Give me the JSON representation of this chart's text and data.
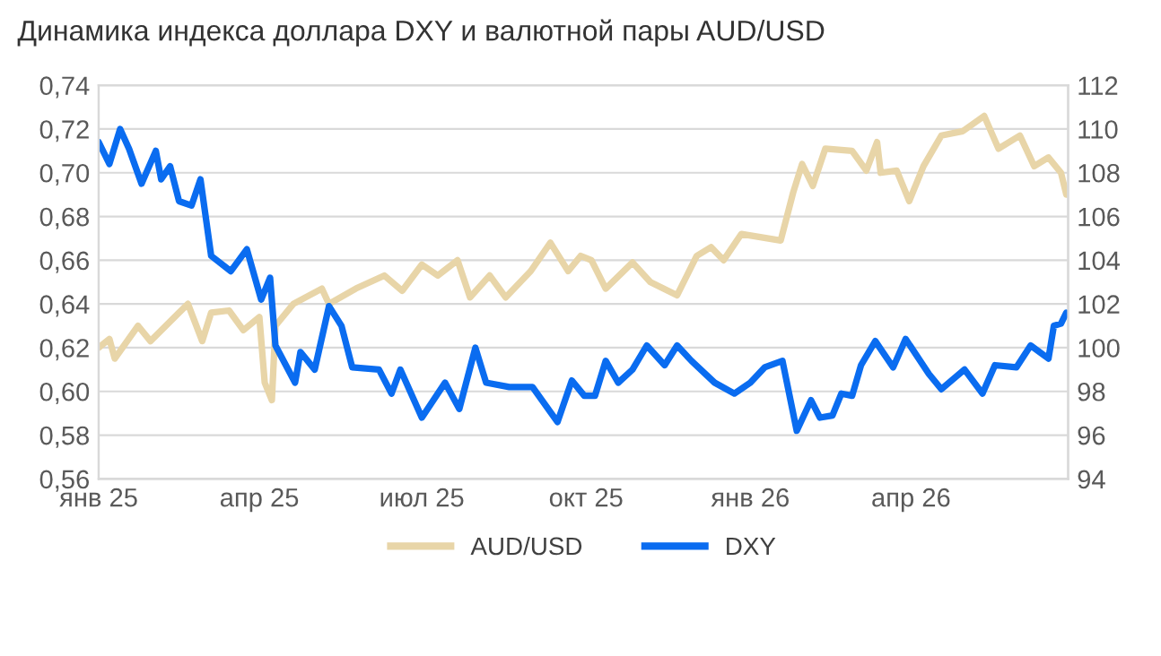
{
  "chart_data": {
    "type": "line",
    "title": "Динамика индекса доллара DXY и валютной пары AUD/USD",
    "xlim": [
      "2025-01-01",
      "2026-06-28"
    ],
    "xticks": [
      {
        "value": "2025-01-01",
        "label": "янв 25"
      },
      {
        "value": "2025-04-01",
        "label": "апр 25"
      },
      {
        "value": "2025-07-01",
        "label": "июл 25"
      },
      {
        "value": "2025-10-01",
        "label": "окт 25"
      },
      {
        "value": "2026-01-01",
        "label": "янв 26"
      },
      {
        "value": "2026-04-01",
        "label": "апр 26"
      }
    ],
    "ylim": [
      0.56,
      0.74
    ],
    "yticks": [
      {
        "value": 0.56,
        "label": "0,56"
      },
      {
        "value": 0.58,
        "label": "0,58"
      },
      {
        "value": 0.6,
        "label": "0,60"
      },
      {
        "value": 0.62,
        "label": "0,62"
      },
      {
        "value": 0.64,
        "label": "0,64"
      },
      {
        "value": 0.66,
        "label": "0,66"
      },
      {
        "value": 0.68,
        "label": "0,68"
      },
      {
        "value": 0.7,
        "label": "0,70"
      },
      {
        "value": 0.72,
        "label": "0,72"
      },
      {
        "value": 0.74,
        "label": "0,74"
      }
    ],
    "y2lim": [
      94,
      112
    ],
    "y2ticks": [
      94,
      96,
      98,
      100,
      102,
      104,
      106,
      108,
      110,
      112
    ],
    "grid": "y",
    "legend": "bottom",
    "marker": "none",
    "line_style": "solid",
    "series": [
      {
        "name": "AUD/USD",
        "color": "#e8d5a8",
        "x": [
          "2025-01-01",
          "2025-01-07",
          "2025-01-10",
          "2025-01-23",
          "2025-01-30",
          "2025-02-15",
          "2025-02-20",
          "2025-02-28",
          "2025-03-05",
          "2025-03-15",
          "2025-03-23",
          "2025-04-01",
          "2025-04-04",
          "2025-04-08",
          "2025-04-10",
          "2025-04-20",
          "2025-05-06",
          "2025-05-10",
          "2025-05-25",
          "2025-06-10",
          "2025-06-20",
          "2025-07-01",
          "2025-07-10",
          "2025-07-21",
          "2025-07-28",
          "2025-08-08",
          "2025-08-17",
          "2025-08-31",
          "2025-09-11",
          "2025-09-21",
          "2025-09-28",
          "2025-10-04",
          "2025-10-12",
          "2025-10-27",
          "2025-11-06",
          "2025-11-21",
          "2025-12-02",
          "2025-12-10",
          "2025-12-17",
          "2025-12-27",
          "2026-01-18",
          "2026-01-25",
          "2026-01-30",
          "2026-02-05",
          "2026-02-12",
          "2026-02-27",
          "2026-03-07",
          "2026-03-13",
          "2026-03-15",
          "2026-03-24",
          "2026-03-31",
          "2026-04-08",
          "2026-04-18",
          "2026-04-30",
          "2026-05-12",
          "2026-05-20",
          "2026-06-01",
          "2026-06-09",
          "2026-06-17",
          "2026-06-24",
          "2026-06-27"
        ],
        "values": [
          0.62,
          0.624,
          0.615,
          0.63,
          0.623,
          0.636,
          0.64,
          0.623,
          0.636,
          0.637,
          0.628,
          0.634,
          0.604,
          0.596,
          0.63,
          0.64,
          0.647,
          0.64,
          0.647,
          0.653,
          0.646,
          0.658,
          0.653,
          0.66,
          0.643,
          0.653,
          0.643,
          0.655,
          0.668,
          0.655,
          0.662,
          0.66,
          0.647,
          0.659,
          0.65,
          0.644,
          0.662,
          0.666,
          0.66,
          0.672,
          0.669,
          0.691,
          0.704,
          0.694,
          0.711,
          0.71,
          0.701,
          0.714,
          0.7,
          0.701,
          0.687,
          0.703,
          0.717,
          0.719,
          0.726,
          0.711,
          0.717,
          0.703,
          0.707,
          0.7,
          0.69
        ]
      },
      {
        "name": "DXY",
        "color": "#0a6cf0",
        "axis": "y2",
        "x": [
          "2025-01-01",
          "2025-01-07",
          "2025-01-13",
          "2025-01-18",
          "2025-01-25",
          "2025-02-02",
          "2025-02-05",
          "2025-02-10",
          "2025-02-15",
          "2025-02-22",
          "2025-02-27",
          "2025-03-05",
          "2025-03-16",
          "2025-03-25",
          "2025-04-02",
          "2025-04-07",
          "2025-04-10",
          "2025-04-21",
          "2025-04-24",
          "2025-05-02",
          "2025-05-10",
          "2025-05-17",
          "2025-05-23",
          "2025-06-07",
          "2025-06-14",
          "2025-06-19",
          "2025-07-01",
          "2025-07-14",
          "2025-07-22",
          "2025-07-31",
          "2025-08-06",
          "2025-08-19",
          "2025-09-01",
          "2025-09-15",
          "2025-09-23",
          "2025-09-30",
          "2025-10-06",
          "2025-10-12",
          "2025-10-19",
          "2025-10-27",
          "2025-11-04",
          "2025-11-14",
          "2025-11-21",
          "2025-11-29",
          "2025-12-12",
          "2025-12-23",
          "2026-01-01",
          "2026-01-09",
          "2026-01-19",
          "2026-01-27",
          "2026-02-04",
          "2026-02-09",
          "2026-02-16",
          "2026-02-21",
          "2026-02-27",
          "2026-03-04",
          "2026-03-12",
          "2026-03-22",
          "2026-03-29",
          "2026-04-11",
          "2026-04-18",
          "2026-05-01",
          "2026-05-11",
          "2026-05-18",
          "2026-05-30",
          "2026-06-07",
          "2026-06-17",
          "2026-06-20",
          "2026-06-24",
          "2026-06-27"
        ],
        "values": [
          109.4,
          108.4,
          110.0,
          109.1,
          107.5,
          109.0,
          107.7,
          108.3,
          106.7,
          106.5,
          107.7,
          104.2,
          103.5,
          104.5,
          102.2,
          103.2,
          100.1,
          98.4,
          99.8,
          99.0,
          101.9,
          101.0,
          99.1,
          99.0,
          97.9,
          99.0,
          96.8,
          98.4,
          97.2,
          100.0,
          98.4,
          98.2,
          98.2,
          96.6,
          98.5,
          97.8,
          97.8,
          99.4,
          98.4,
          99.0,
          100.1,
          99.2,
          100.1,
          99.4,
          98.4,
          97.9,
          98.4,
          99.1,
          99.4,
          96.2,
          97.6,
          96.8,
          96.9,
          97.9,
          97.8,
          99.2,
          100.3,
          99.1,
          100.4,
          98.8,
          98.1,
          99.0,
          97.9,
          99.2,
          99.1,
          100.1,
          99.5,
          101.0,
          101.1,
          101.6
        ]
      }
    ]
  }
}
